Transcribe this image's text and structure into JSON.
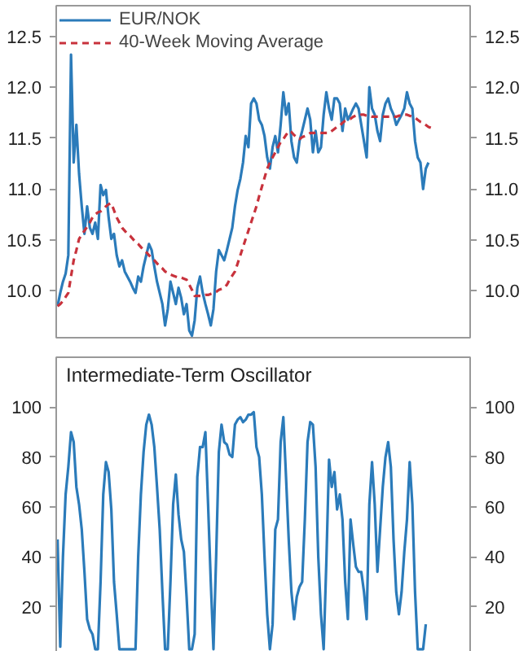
{
  "chart_data": [
    {
      "type": "line",
      "categories": [
        null,
        null,
        null,
        null,
        null,
        null,
        null,
        null,
        null,
        null,
        null,
        null,
        null,
        null,
        null,
        null,
        null,
        null,
        null,
        null,
        null,
        null,
        null,
        null,
        null,
        null,
        null,
        null,
        null,
        null,
        null,
        null,
        null,
        null,
        null,
        null,
        null,
        null,
        null,
        null,
        null,
        null,
        null,
        null,
        null,
        null,
        null,
        null,
        null,
        null,
        null,
        null,
        null,
        null,
        null,
        null,
        null,
        null,
        null,
        null,
        null,
        null,
        null,
        null,
        null,
        null,
        null,
        null,
        null,
        null,
        null,
        null,
        null,
        null,
        null,
        null,
        null,
        null,
        null,
        null,
        null,
        null,
        null,
        null,
        null,
        null,
        null,
        null,
        null,
        null,
        null,
        null,
        null,
        null,
        null,
        null,
        null,
        null,
        null,
        null,
        null,
        null,
        null,
        null,
        null,
        null,
        null,
        null,
        null,
        null,
        null,
        null,
        null,
        null,
        null,
        null,
        null,
        null,
        null,
        null,
        null,
        null,
        null,
        null,
        null,
        null,
        null,
        null,
        null,
        null,
        null,
        null,
        null,
        null,
        null,
        null,
        null,
        null,
        null,
        null,
        null,
        null,
        null,
        null,
        null,
        null,
        null,
        null,
        null,
        null,
        null,
        null,
        null,
        null
      ],
      "series": [
        {
          "name": "EUR/NOK",
          "color": "#2b7bba",
          "line_style": "solid",
          "values": [
            9.85,
            9.98,
            10.09,
            10.17,
            10.35,
            12.32,
            11.26,
            11.63,
            11.15,
            10.83,
            10.56,
            10.83,
            10.62,
            10.56,
            10.67,
            10.51,
            11.04,
            10.94,
            10.99,
            10.72,
            10.51,
            10.56,
            10.35,
            10.24,
            10.3,
            10.19,
            10.14,
            10.09,
            10.03,
            9.98,
            10.14,
            10.09,
            10.24,
            10.35,
            10.46,
            10.4,
            10.24,
            10.09,
            9.98,
            9.87,
            9.66,
            9.82,
            10.09,
            9.98,
            9.87,
            10.03,
            9.93,
            9.77,
            9.87,
            9.61,
            9.56,
            9.71,
            10.03,
            10.14,
            9.98,
            9.87,
            9.77,
            9.66,
            9.82,
            10.19,
            10.4,
            10.35,
            10.3,
            10.4,
            10.51,
            10.62,
            10.83,
            10.99,
            11.1,
            11.26,
            11.52,
            11.41,
            11.84,
            11.89,
            11.84,
            11.68,
            11.63,
            11.52,
            11.31,
            11.2,
            11.41,
            11.52,
            11.36,
            11.63,
            11.95,
            11.73,
            11.84,
            11.47,
            11.31,
            11.26,
            11.47,
            11.57,
            11.68,
            11.79,
            11.68,
            11.36,
            11.57,
            11.36,
            11.41,
            11.73,
            11.95,
            11.79,
            11.68,
            11.89,
            11.89,
            11.84,
            11.57,
            11.79,
            11.68,
            11.73,
            11.79,
            11.84,
            11.79,
            11.63,
            11.47,
            11.31,
            12.0,
            11.79,
            11.73,
            11.57,
            11.47,
            11.73,
            11.84,
            11.89,
            11.79,
            11.73,
            11.63,
            11.68,
            11.73,
            11.79,
            11.95,
            11.84,
            11.79,
            11.47,
            11.31,
            11.26,
            11.0,
            11.2,
            11.26,
            null,
            null,
            null,
            null,
            null,
            null,
            null,
            null,
            null,
            null,
            null,
            null,
            null,
            null,
            null
          ]
        },
        {
          "name": "40-Week Moving Average",
          "color": "#c8323c",
          "line_style": "dashed",
          "values": [
            9.85,
            9.87,
            9.9,
            9.94,
            9.98,
            10.14,
            10.3,
            10.4,
            10.51,
            10.55,
            10.59,
            10.63,
            10.67,
            10.72,
            10.75,
            10.77,
            10.78,
            10.8,
            10.83,
            10.85,
            10.86,
            10.79,
            10.72,
            10.67,
            10.62,
            10.59,
            10.56,
            10.54,
            10.51,
            10.48,
            10.46,
            10.43,
            10.4,
            10.38,
            10.35,
            10.32,
            10.3,
            10.27,
            10.24,
            10.22,
            10.19,
            10.18,
            10.16,
            10.15,
            10.14,
            10.13,
            10.13,
            10.12,
            10.11,
            10.06,
            10.01,
            9.95,
            9.95,
            9.95,
            9.95,
            9.96,
            9.96,
            9.97,
            9.98,
            9.99,
            10.01,
            10.02,
            10.03,
            10.06,
            10.11,
            10.15,
            10.19,
            10.27,
            10.35,
            10.43,
            10.51,
            10.59,
            10.67,
            10.75,
            10.83,
            10.93,
            11.02,
            11.11,
            11.2,
            11.26,
            11.31,
            11.36,
            11.41,
            11.46,
            11.49,
            11.53,
            11.57,
            11.56,
            11.53,
            11.51,
            11.49,
            11.51,
            11.52,
            11.53,
            11.55,
            11.55,
            11.55,
            11.55,
            11.55,
            11.55,
            11.55,
            11.55,
            11.57,
            11.59,
            11.61,
            11.62,
            11.65,
            11.67,
            11.68,
            11.69,
            11.71,
            11.72,
            11.72,
            11.73,
            11.73,
            11.72,
            11.72,
            11.71,
            11.71,
            11.71,
            11.71,
            11.71,
            11.71,
            11.71,
            11.71,
            11.71,
            11.71,
            11.72,
            11.72,
            11.73,
            11.73,
            11.72,
            11.71,
            11.7,
            11.68,
            11.66,
            11.65,
            11.63,
            11.61,
            11.6,
            null,
            null,
            null,
            null,
            null,
            null,
            null,
            null,
            null,
            null,
            null,
            null,
            null,
            null
          ]
        }
      ],
      "ylim": [
        9.54,
        12.8
      ],
      "yticks": [
        {
          "value": 10,
          "label": "10.0"
        },
        10.5,
        {
          "value": 11,
          "label": "11.0"
        },
        11.5,
        {
          "value": 12,
          "label": "12.0"
        },
        12.5
      ],
      "y2lim": [
        9.54,
        12.8
      ],
      "y2ticks": [
        {
          "value": 10,
          "label": "10.0"
        },
        10.5,
        {
          "value": 11,
          "label": "11.0"
        },
        11.5,
        {
          "value": 12,
          "label": "12.0"
        },
        12.5
      ],
      "tick_labels": "y",
      "grid": false,
      "legend": "top left"
    },
    {
      "type": "line",
      "title": "Intermediate-Term Oscillator",
      "categories": [
        null,
        null,
        null,
        null,
        null,
        null,
        null,
        null,
        null,
        null,
        null,
        null,
        null,
        null,
        null,
        null,
        null,
        null,
        null,
        null,
        null,
        null,
        null,
        null,
        null,
        null,
        null,
        null,
        null,
        null,
        null,
        null,
        null,
        null,
        null,
        null,
        null,
        null,
        null,
        null,
        null,
        null,
        null,
        null,
        null,
        null,
        null,
        null,
        null,
        null,
        null,
        null,
        null,
        null,
        null,
        null,
        null,
        null,
        null,
        null,
        null,
        null,
        null,
        null,
        null,
        null,
        null,
        null,
        null,
        null,
        null,
        null,
        null,
        null,
        null,
        null,
        null,
        null,
        null,
        null,
        null,
        null,
        null,
        null,
        null,
        null,
        null,
        null,
        null,
        null,
        null,
        null,
        null,
        null,
        null,
        null,
        null,
        null,
        null,
        null,
        null,
        null,
        null,
        null,
        null,
        null,
        null,
        null,
        null,
        null,
        null,
        null,
        null,
        null,
        null,
        null,
        null,
        null,
        null,
        null,
        null,
        null,
        null,
        null,
        null,
        null,
        null,
        null,
        null,
        null,
        null,
        null,
        null,
        null,
        null,
        null,
        null,
        null,
        null,
        null,
        null,
        null,
        null,
        null,
        null,
        null,
        null,
        null,
        null,
        null,
        null,
        null,
        null,
        null
      ],
      "series": [
        {
          "color": "#2b7bba",
          "line_style": "solid",
          "values": [
            47,
            4,
            40,
            65,
            76,
            90,
            86,
            68,
            61,
            51,
            34,
            15,
            11,
            9,
            3,
            3,
            30,
            65,
            78,
            74,
            59,
            30,
            17,
            3,
            3,
            3,
            3,
            3,
            3,
            3,
            40,
            65,
            82,
            93,
            97,
            93,
            84,
            68,
            51,
            26,
            3,
            3,
            30,
            61,
            73,
            57,
            47,
            42,
            24,
            3,
            3,
            9,
            72,
            84,
            84,
            90,
            61,
            30,
            3,
            40,
            82,
            93,
            86,
            85,
            81,
            80,
            93,
            95,
            96,
            94,
            95,
            97,
            97,
            98,
            84,
            80,
            65,
            40,
            17,
            3,
            13,
            51,
            55,
            86,
            96,
            72,
            47,
            26,
            15,
            24,
            28,
            30,
            55,
            86,
            94,
            93,
            76,
            40,
            17,
            3,
            38,
            79,
            68,
            74,
            59,
            65,
            55,
            30,
            15,
            55,
            45,
            36,
            34,
            34,
            26,
            15,
            61,
            78,
            61,
            34,
            51,
            68,
            80,
            86,
            76,
            47,
            26,
            17,
            26,
            42,
            55,
            78,
            61,
            26,
            3,
            3,
            3,
            13,
            null,
            null,
            null,
            null,
            null,
            null,
            null,
            null,
            null,
            null,
            null,
            null,
            null,
            null,
            null,
            null
          ]
        }
      ],
      "ylim": [
        0,
        120
      ],
      "yticks": [
        20,
        40,
        60,
        80,
        100
      ],
      "y2lim": [
        0,
        120
      ],
      "y2ticks": [
        20,
        40,
        60,
        80,
        100
      ],
      "tick_labels": "y",
      "grid": false,
      "legend": false
    }
  ]
}
